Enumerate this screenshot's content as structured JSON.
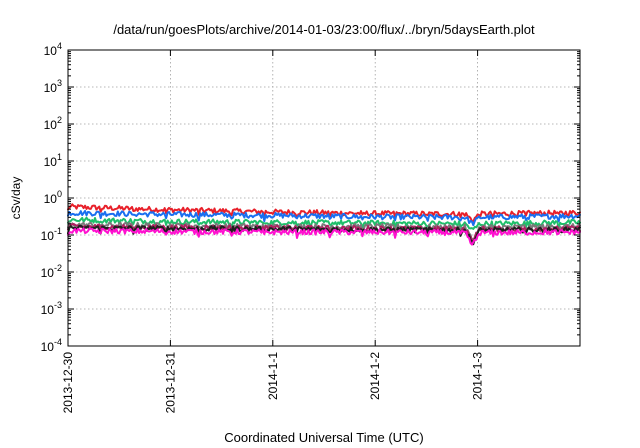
{
  "chart_data": {
    "type": "line",
    "title": "/data/run/goesPlots/archive/2014-01-03/23:00/flux/../bryn/5daysEarth.plot",
    "xlabel": "Coordinated Universal Time (UTC)",
    "ylabel": "cSv/day",
    "x_ticks": [
      "2013-12-30",
      "2013-12-31",
      "2014-1-1",
      "2014-1-2",
      "2014-1-3"
    ],
    "x_range": [
      "2013-12-30 00:00",
      "2014-01-04 00:00"
    ],
    "y_scale": "log",
    "ylim": [
      0.0001,
      10000
    ],
    "y_ticks": [
      {
        "base": "10",
        "exp": "4"
      },
      {
        "base": "10",
        "exp": "3"
      },
      {
        "base": "10",
        "exp": "2"
      },
      {
        "base": "10",
        "exp": "1"
      },
      {
        "base": "10",
        "exp": "0"
      },
      {
        "base": "10",
        "exp": "-1"
      },
      {
        "base": "10",
        "exp": "-2"
      },
      {
        "base": "10",
        "exp": "-3"
      },
      {
        "base": "10",
        "exp": "-4"
      }
    ],
    "grid": true,
    "legend": "none",
    "series": [
      {
        "color": "#e8202a",
        "keypoints": [
          [
            0.0,
            0.58
          ],
          [
            1.0,
            0.48
          ],
          [
            2.0,
            0.42
          ],
          [
            3.0,
            0.38
          ],
          [
            4.0,
            0.37
          ],
          [
            5.0,
            0.4
          ]
        ]
      },
      {
        "color": "#1a6ff0",
        "keypoints": [
          [
            0.0,
            0.4
          ],
          [
            1.0,
            0.36
          ],
          [
            2.0,
            0.34
          ],
          [
            3.0,
            0.31
          ],
          [
            4.0,
            0.3
          ],
          [
            5.0,
            0.33
          ]
        ]
      },
      {
        "color": "#1fbf6a",
        "keypoints": [
          [
            0.0,
            0.26
          ],
          [
            1.0,
            0.23
          ],
          [
            2.0,
            0.22
          ],
          [
            3.0,
            0.21
          ],
          [
            4.0,
            0.2
          ],
          [
            5.0,
            0.22
          ]
        ]
      },
      {
        "color": "#7a7a7a",
        "keypoints": [
          [
            0.0,
            0.19
          ],
          [
            1.0,
            0.18
          ],
          [
            2.0,
            0.17
          ],
          [
            3.0,
            0.17
          ],
          [
            4.0,
            0.16
          ],
          [
            5.0,
            0.17
          ]
        ]
      },
      {
        "color": "#b02060",
        "keypoints": [
          [
            0.0,
            0.17
          ],
          [
            1.0,
            0.16
          ],
          [
            2.0,
            0.155
          ],
          [
            3.0,
            0.15
          ],
          [
            4.0,
            0.145
          ],
          [
            5.0,
            0.15
          ]
        ]
      },
      {
        "color": "#202020",
        "keypoints": [
          [
            0.0,
            0.155
          ],
          [
            1.0,
            0.15
          ],
          [
            2.0,
            0.145
          ],
          [
            3.0,
            0.14
          ],
          [
            4.0,
            0.135
          ],
          [
            5.0,
            0.14
          ]
        ]
      },
      {
        "color": "#ff10d0",
        "keypoints": [
          [
            0.0,
            0.13
          ],
          [
            1.0,
            0.125
          ],
          [
            2.0,
            0.12
          ],
          [
            3.0,
            0.12
          ],
          [
            4.0,
            0.115
          ],
          [
            5.0,
            0.12
          ]
        ]
      }
    ],
    "dip": {
      "x": 3.95,
      "depth_decades": 0.35
    }
  }
}
